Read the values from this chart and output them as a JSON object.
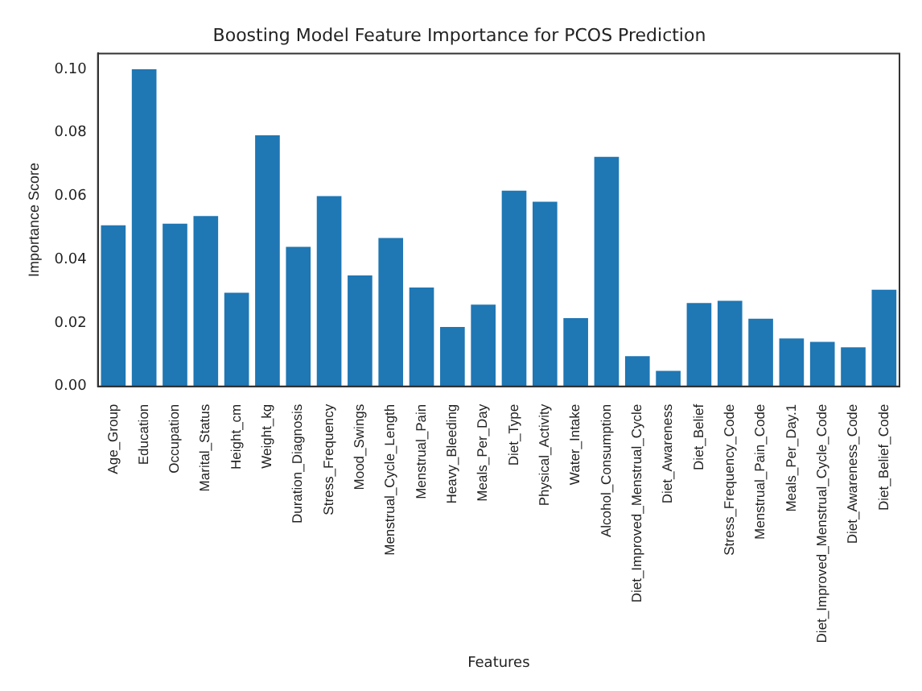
{
  "chart_data": {
    "type": "bar",
    "title": "Boosting Model Feature Importance for PCOS Prediction",
    "xlabel": "Features",
    "ylabel": "Importance Score",
    "categories": [
      "Age_Group",
      "Education",
      "Occupation",
      "Marital_Status",
      "Height_cm",
      "Weight_kg",
      "Duration_Diagnosis",
      "Stress_Frequency",
      "Mood_Swings",
      "Menstrual_Cycle_Length",
      "Menstrual_Pain",
      "Heavy_Bleeding",
      "Meals_Per_Day",
      "Diet_Type",
      "Physical_Activity",
      "Water_Intake",
      "Alcohol_Consumption",
      "Diet_Improved_Menstrual_Cycle",
      "Diet_Awareness",
      "Diet_Belief",
      "Stress_Frequency_Code",
      "Menstrual_Pain_Code",
      "Meals_Per_Day.1",
      "Diet_Improved_Menstrual_Cycle_Code",
      "Diet_Awareness_Code",
      "Diet_Belief_Code"
    ],
    "values": [
      0.0508,
      0.1,
      0.0513,
      0.0537,
      0.0295,
      0.0792,
      0.044,
      0.06,
      0.035,
      0.0468,
      0.0312,
      0.0187,
      0.0258,
      0.0617,
      0.0582,
      0.0215,
      0.0724,
      0.0095,
      0.0049,
      0.0263,
      0.027,
      0.0213,
      0.0151,
      0.014,
      0.0123,
      0.0305
    ],
    "color": "#1f77b4",
    "ylim": [
      0,
      0.105
    ],
    "yticks": [
      {
        "value": 0,
        "label": "0.00"
      },
      {
        "value": 0.02,
        "label": "0.02"
      },
      {
        "value": 0.04,
        "label": "0.04"
      },
      {
        "value": 0.06,
        "label": "0.06"
      },
      {
        "value": 0.08,
        "label": "0.08"
      },
      {
        "value": 0.1,
        "label": "0.10"
      }
    ],
    "grid": false,
    "legend": false
  }
}
